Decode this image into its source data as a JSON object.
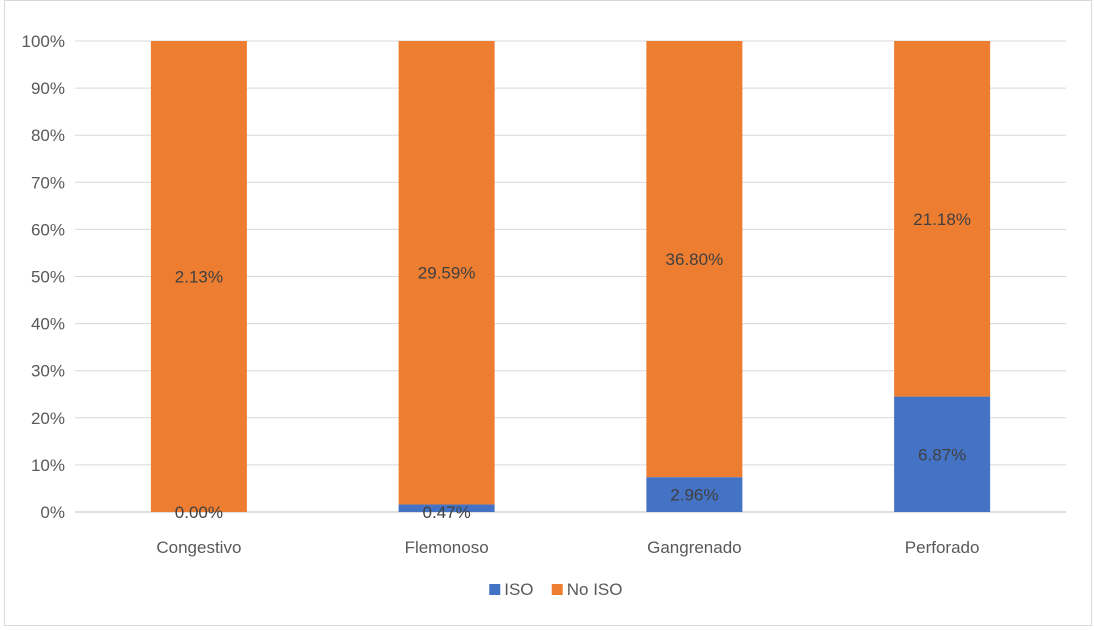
{
  "chart_data": {
    "type": "bar",
    "stacked": true,
    "normalized": true,
    "categories": [
      "Congestivo",
      "Flemonoso",
      "Gangrenado",
      "Perforado"
    ],
    "series": [
      {
        "name": "ISO",
        "color": "#4472c4",
        "values": [
          0,
          1.6,
          7.4,
          24.5
        ],
        "labels": [
          "0.00%",
          "0.47%",
          "2.96%",
          "6.87%"
        ]
      },
      {
        "name": "No ISO",
        "color": "#ed7d31",
        "values": [
          100,
          98.4,
          92.6,
          75.5
        ],
        "labels": [
          "2.13%",
          "29.59%",
          "36.80%",
          "21.18%"
        ]
      }
    ],
    "ylim": [
      0,
      100
    ],
    "yticks": [
      "0%",
      "10%",
      "20%",
      "30%",
      "40%",
      "50%",
      "60%",
      "70%",
      "80%",
      "90%",
      "100%"
    ],
    "grid": true,
    "legend_position": "bottom",
    "title": "",
    "xlabel": "",
    "ylabel": ""
  }
}
